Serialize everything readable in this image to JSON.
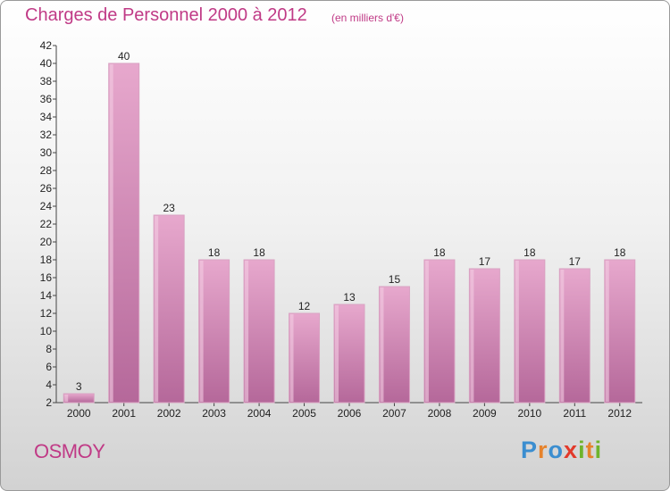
{
  "header": {
    "title": "Charges de Personnel 2000 à 2012",
    "unit": "(en milliers d'€)"
  },
  "footer": {
    "commune": "OSMOY",
    "logo_letters": [
      "P",
      "r",
      "o",
      "x",
      "i",
      "t",
      "i"
    ]
  },
  "colors": {
    "bar": "#d78db7",
    "title": "#c03a86"
  },
  "chart_data": {
    "type": "bar",
    "categories": [
      "2000",
      "2001",
      "2002",
      "2003",
      "2004",
      "2005",
      "2006",
      "2007",
      "2008",
      "2009",
      "2010",
      "2011",
      "2012"
    ],
    "values": [
      3,
      40,
      23,
      18,
      18,
      12,
      13,
      15,
      18,
      17,
      18,
      17,
      18
    ],
    "ylim": [
      2,
      42
    ],
    "yticks": [
      2,
      4,
      6,
      8,
      10,
      12,
      14,
      16,
      18,
      20,
      22,
      24,
      26,
      28,
      30,
      32,
      34,
      36,
      38,
      40,
      42
    ],
    "grid": false,
    "legend": "none"
  }
}
